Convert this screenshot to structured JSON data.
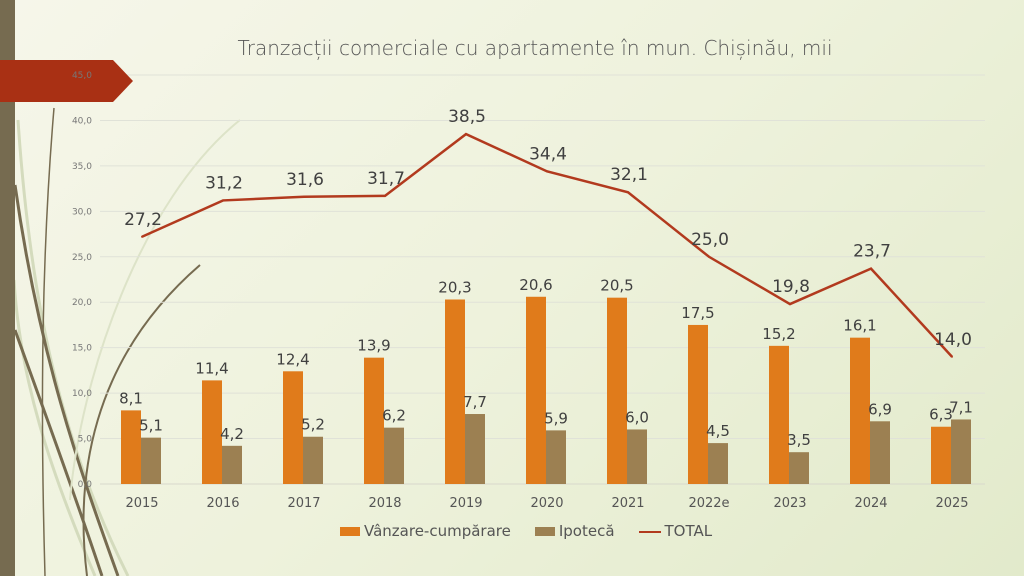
{
  "colors": {
    "sales": "#E07B1B",
    "mortgage": "#9C8052",
    "total": "#B23A1E",
    "stripe": "#766B50",
    "banner": "#A93014"
  },
  "chart_data": {
    "type": "bar",
    "title": "Tranzacții comerciale cu apartamente în mun. Chișinău, mii",
    "categories": [
      "2015",
      "2016",
      "2017",
      "2018",
      "2019",
      "2020",
      "2021",
      "2022e",
      "2023",
      "2024",
      "2025"
    ],
    "series": [
      {
        "name": "Vânzare-cumpărare",
        "type": "bar",
        "values": [
          8.1,
          11.4,
          12.4,
          13.9,
          20.3,
          20.6,
          20.5,
          17.5,
          15.2,
          16.1,
          6.3
        ]
      },
      {
        "name": "Ipotecă",
        "type": "bar",
        "values": [
          5.1,
          4.2,
          5.2,
          6.2,
          7.7,
          5.9,
          6.0,
          4.5,
          3.5,
          6.9,
          7.1
        ]
      },
      {
        "name": "TOTAL",
        "type": "line",
        "values": [
          27.2,
          31.2,
          31.6,
          31.7,
          38.5,
          34.4,
          32.1,
          25.0,
          19.8,
          23.7,
          14.0
        ]
      }
    ],
    "yticks": [
      "0,0",
      "5,0",
      "10,0",
      "15,0",
      "20,0",
      "25,0",
      "30,0",
      "35,0",
      "40,0",
      "45,0"
    ],
    "ylim": [
      0,
      45
    ],
    "grid": true,
    "legend": "bottom"
  }
}
